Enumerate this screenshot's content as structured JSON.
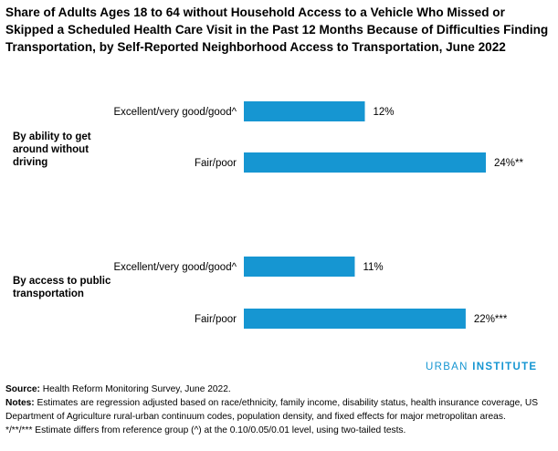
{
  "chart_data": {
    "type": "bar",
    "orientation": "horizontal",
    "title": "Share of Adults Ages 18 to 64 without Household Access to a Vehicle Who Missed or Skipped a Scheduled Health Care Visit in the Past 12 Months Because of Difficulties Finding Transportation, by Self-Reported Neighborhood Access to Transportation, June 2022",
    "groups": [
      {
        "label": "By ability to get around without driving",
        "bars": [
          {
            "category": "Excellent/very good/good^",
            "value": 12,
            "label": "12%"
          },
          {
            "category": "Fair/poor",
            "value": 24,
            "label": "24%**"
          }
        ]
      },
      {
        "label": "By access to public transportation",
        "bars": [
          {
            "category": "Excellent/very good/good^",
            "value": 11,
            "label": "11%"
          },
          {
            "category": "Fair/poor",
            "value": 22,
            "label": "22%***"
          }
        ]
      }
    ],
    "bar_color": "#1696d2",
    "grid": false,
    "xlim": [
      0,
      24
    ]
  },
  "brand": {
    "part1": "URBAN",
    "part2": "INSTITUTE",
    "color": "#1696d2"
  },
  "footer": {
    "source_label": "Source:",
    "source_text": " Health Reform Monitoring Survey, June 2022.",
    "notes_label": "Notes:",
    "notes_text": " Estimates are regression adjusted based on race/ethnicity, family income, disability status, health insurance coverage, US Department of Agriculture rural-urban continuum codes, population density, and fixed effects for major metropolitan areas.",
    "sig_text": "*/**/*** Estimate differs from reference group (^) at the 0.10/0.05/0.01 level, using two-tailed tests."
  }
}
